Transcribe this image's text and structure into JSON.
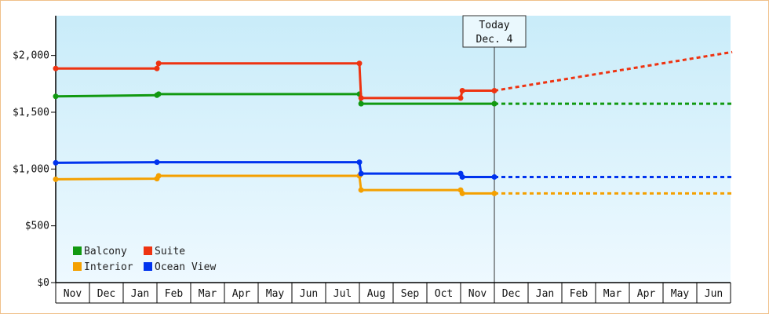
{
  "chart_data": {
    "type": "line",
    "step": true,
    "title": "",
    "xlabel": "",
    "ylabel": "",
    "ylim": [
      0,
      2350
    ],
    "yticks": [
      0,
      500,
      1000,
      1500,
      2000
    ],
    "ytick_labels": [
      "$0",
      "$500",
      "$1,000",
      "$1,500",
      "$2,000"
    ],
    "x_categories": [
      "Nov",
      "Dec",
      "Jan",
      "Feb",
      "Mar",
      "Apr",
      "May",
      "Jun",
      "Jul",
      "Aug",
      "Sep",
      "Oct",
      "Nov",
      "Dec",
      "Jan",
      "Feb",
      "Mar",
      "Apr",
      "May",
      "Jun"
    ],
    "grid": false,
    "legend_position": "bottom-left",
    "background_gradient": [
      "#c9ecf9",
      "#eef9ff"
    ],
    "today_marker": {
      "x": 13,
      "line1": "Today",
      "line2": "Dec. 4"
    },
    "series": [
      {
        "name": "Balcony",
        "color": "#119911",
        "points": [
          [
            0,
            1640
          ],
          [
            3,
            1650
          ],
          [
            3.05,
            1660
          ],
          [
            9,
            1660
          ],
          [
            9.05,
            1575
          ],
          [
            13,
            1575
          ]
        ],
        "forecast": [
          [
            13,
            1575
          ],
          [
            20.05,
            1575
          ]
        ]
      },
      {
        "name": "Suite",
        "color": "#ee3311",
        "points": [
          [
            0,
            1885
          ],
          [
            3,
            1885
          ],
          [
            3.05,
            1930
          ],
          [
            9,
            1930
          ],
          [
            9.05,
            1625
          ],
          [
            12,
            1625
          ],
          [
            12.05,
            1690
          ],
          [
            13,
            1690
          ]
        ],
        "forecast": [
          [
            13,
            1690
          ],
          [
            20.05,
            2030
          ]
        ]
      },
      {
        "name": "Interior",
        "color": "#f4a000",
        "points": [
          [
            0,
            910
          ],
          [
            3,
            915
          ],
          [
            3.05,
            940
          ],
          [
            9,
            940
          ],
          [
            9.05,
            815
          ],
          [
            12,
            815
          ],
          [
            12.05,
            785
          ],
          [
            13,
            785
          ]
        ],
        "forecast": [
          [
            13,
            785
          ],
          [
            20.05,
            785
          ]
        ]
      },
      {
        "name": "Ocean View",
        "color": "#0033ee",
        "points": [
          [
            0,
            1055
          ],
          [
            3,
            1060
          ],
          [
            9,
            1060
          ],
          [
            9.05,
            960
          ],
          [
            12,
            960
          ],
          [
            12.05,
            930
          ],
          [
            13,
            930
          ]
        ],
        "forecast": [
          [
            13,
            930
          ],
          [
            20.05,
            930
          ]
        ]
      }
    ],
    "legend_order": [
      "Balcony",
      "Suite",
      "Interior",
      "Ocean View"
    ]
  }
}
